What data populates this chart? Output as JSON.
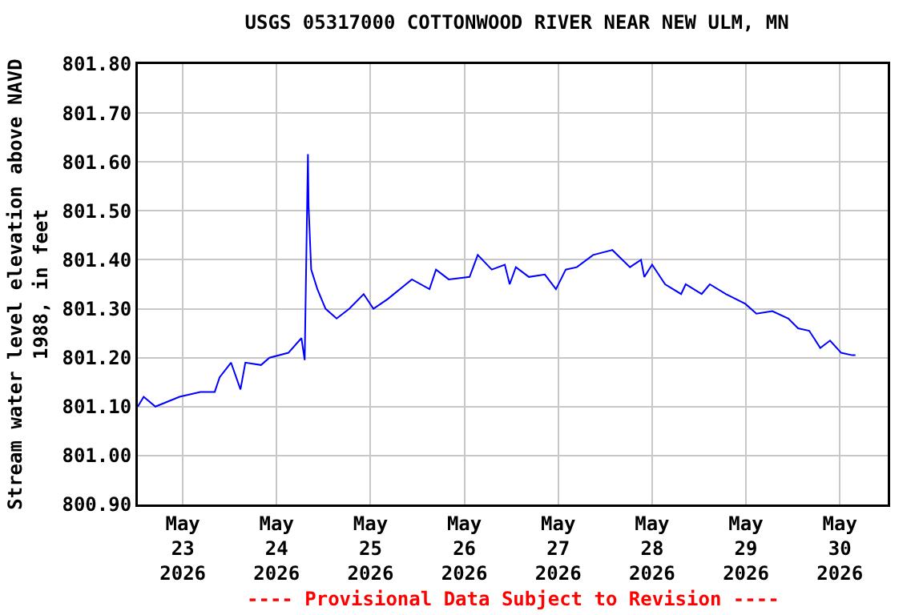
{
  "chart_data": {
    "type": "line",
    "title": "USGS 05317000 COTTONWOOD RIVER NEAR NEW ULM, MN",
    "ylabel": "Stream water level elevation above NAVD\n1988, in feet",
    "annotations": [
      "---- Provisional Data Subject to Revision ----"
    ],
    "x": [
      "2026-05-22T12:30",
      "2026-05-22T14:00",
      "2026-05-22T17:00",
      "2026-05-22T23:10",
      "2026-05-23T04:30",
      "2026-05-23T08:10",
      "2026-05-23T09:25",
      "2026-05-23T12:20",
      "2026-05-23T14:45",
      "2026-05-23T16:00",
      "2026-05-23T20:00",
      "2026-05-23T22:10",
      "2026-05-24T03:00",
      "2026-05-24T06:20",
      "2026-05-24T07:10",
      "2026-05-24T08:00",
      "2026-05-24T08:10",
      "2026-05-24T08:50",
      "2026-05-24T10:25",
      "2026-05-24T12:30",
      "2026-05-24T15:20",
      "2026-05-24T18:35",
      "2026-05-24T22:15",
      "2026-05-25T00:45",
      "2026-05-25T04:25",
      "2026-05-25T10:35",
      "2026-05-25T15:05",
      "2026-05-25T16:45",
      "2026-05-25T20:00",
      "2026-05-26T01:20",
      "2026-05-26T03:25",
      "2026-05-26T07:00",
      "2026-05-26T10:20",
      "2026-05-26T11:35",
      "2026-05-26T13:10",
      "2026-05-26T16:30",
      "2026-05-26T20:35",
      "2026-05-26T23:25",
      "2026-05-27T01:55",
      "2026-05-27T04:45",
      "2026-05-27T08:55",
      "2026-05-27T13:50",
      "2026-05-27T18:20",
      "2026-05-27T21:10",
      "2026-05-27T22:00",
      "2026-05-28T00:00",
      "2026-05-28T03:20",
      "2026-05-28T07:25",
      "2026-05-28T08:35",
      "2026-05-28T12:40",
      "2026-05-28T14:45",
      "2026-05-28T18:50",
      "2026-05-28T23:50",
      "2026-05-29T02:40",
      "2026-05-29T06:45",
      "2026-05-29T10:50",
      "2026-05-29T13:20",
      "2026-05-29T16:10",
      "2026-05-29T19:00",
      "2026-05-29T21:30",
      "2026-05-30T00:20",
      "2026-05-30T03:10",
      "2026-05-30T04:00"
    ],
    "series": [
      {
        "color": "#0000ff",
        "values": [
          801.1,
          801.12,
          801.1,
          801.12,
          801.13,
          801.13,
          801.16,
          801.19,
          801.135,
          801.19,
          801.185,
          801.2,
          801.21,
          801.24,
          801.195,
          801.616,
          801.51,
          801.38,
          801.34,
          801.3,
          801.28,
          801.3,
          801.33,
          801.3,
          801.32,
          801.36,
          801.34,
          801.38,
          801.36,
          801.365,
          801.41,
          801.38,
          801.39,
          801.35,
          801.385,
          801.365,
          801.37,
          801.34,
          801.38,
          801.385,
          801.41,
          801.42,
          801.385,
          801.4,
          801.365,
          801.39,
          801.35,
          801.33,
          801.35,
          801.33,
          801.35,
          801.33,
          801.31,
          801.29,
          801.295,
          801.28,
          801.26,
          801.255,
          801.22,
          801.235,
          801.21,
          801.205,
          801.205
        ]
      }
    ],
    "xlim": [
      "2026-05-22T12:30",
      "2026-05-30T12:15"
    ],
    "xticks": [
      {
        "value": "2026-05-23",
        "label": "May\n23\n2026"
      },
      {
        "value": "2026-05-24",
        "label": "May\n24\n2026"
      },
      {
        "value": "2026-05-25",
        "label": "May\n25\n2026"
      },
      {
        "value": "2026-05-26",
        "label": "May\n26\n2026"
      },
      {
        "value": "2026-05-27",
        "label": "May\n27\n2026"
      },
      {
        "value": "2026-05-28",
        "label": "May\n28\n2026"
      },
      {
        "value": "2026-05-29",
        "label": "May\n29\n2026"
      },
      {
        "value": "2026-05-30",
        "label": "May\n30\n2026"
      }
    ],
    "ylim": [
      800.9,
      801.8
    ],
    "yticks": [
      {
        "value": 800.9,
        "label": "800.90"
      },
      {
        "value": 801.0,
        "label": "801.00"
      },
      {
        "value": 801.1,
        "label": "801.10"
      },
      {
        "value": 801.2,
        "label": "801.20"
      },
      {
        "value": 801.3,
        "label": "801.30"
      },
      {
        "value": 801.4,
        "label": "801.40"
      },
      {
        "value": 801.5,
        "label": "801.50"
      },
      {
        "value": 801.6,
        "label": "801.60"
      },
      {
        "value": 801.7,
        "label": "801.70"
      },
      {
        "value": 801.8,
        "label": "801.80"
      }
    ],
    "grid": true,
    "marker": "none",
    "line_style": "solid"
  }
}
